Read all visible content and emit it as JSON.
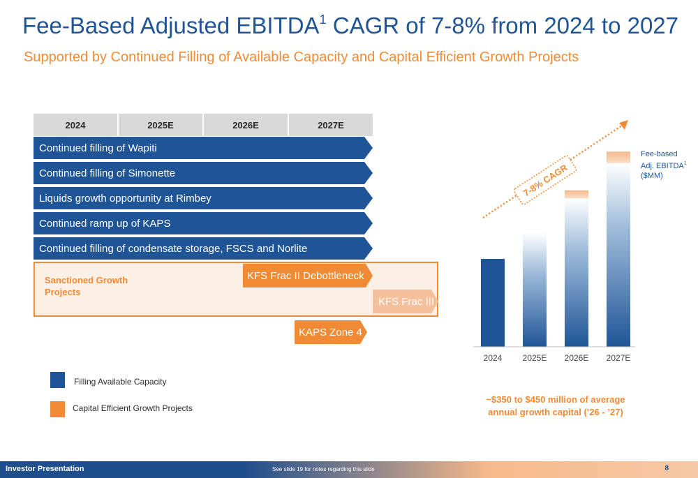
{
  "header": {
    "title_main": "Fee-Based Adjusted EBITDA",
    "title_sup": "1",
    "title_rest": " CAGR of 7-8% from 2024 to 2027",
    "subtitle": "Supported by Continued Filling of Available Capacity and Capital Efficient Growth Projects"
  },
  "timeline": {
    "years": [
      "2024",
      "2025E",
      "2026E",
      "2027E"
    ],
    "filling_rows": [
      "Continued filling of Wapiti",
      "Continued filling of Simonette",
      "Liquids growth opportunity at Rimbey",
      "Continued ramp up of KAPS",
      "Continued filling of condensate storage, FSCS and Norlite"
    ],
    "sanctioned_label": "Sanctioned Growth Projects",
    "projects": {
      "kfs_frac_ii": "KFS Frac II Debottleneck",
      "kfs_frac_iii": "KFS Frac III",
      "kaps_zone4": "KAPS Zone 4"
    }
  },
  "legend": {
    "filling": "Filling Available Capacity",
    "growth": "Capital Efficient Growth Projects"
  },
  "colors": {
    "blue": "#1f5597",
    "orange": "#f08a34",
    "light_orange": "#f6c09a"
  },
  "chart_data": {
    "type": "bar",
    "categories": [
      "2024",
      "2025E",
      "2026E",
      "2027E"
    ],
    "series_label": "Fee-based Adj. EBITDA",
    "series_label_sup": "1",
    "unit_label": "($MM)",
    "values_relative": [
      1.0,
      1.3,
      1.78,
      2.22
    ],
    "growth_portion_relative": [
      0,
      0,
      0.09,
      0.13
    ],
    "cagr_label": "7-8% CAGR",
    "axis": {
      "y_visible": false,
      "grid": false
    }
  },
  "capital_note": "~$350 to $450 million of average annual growth capital (’26 - ’27)",
  "footer": {
    "left": "Investor Presentation",
    "middle": "See slide 19 for notes regarding this slide",
    "page": "8"
  }
}
